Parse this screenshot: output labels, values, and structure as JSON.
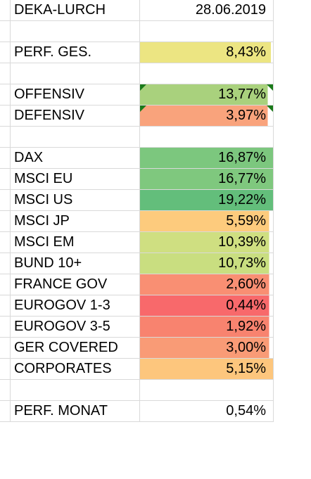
{
  "sheet": {
    "rows": [
      {
        "label": "DEKA-LURCH",
        "value": "28.06.2019",
        "fill": "",
        "bar": 0,
        "tl": false,
        "tr": false
      },
      {
        "label": "",
        "value": "",
        "fill": "",
        "bar": 0,
        "tl": false,
        "tr": false
      },
      {
        "label": "PERF. GES.",
        "value": "8,43%",
        "fill": "#ece582",
        "bar": 0.985,
        "tl": false,
        "tr": false
      },
      {
        "label": "",
        "value": "",
        "fill": "",
        "bar": 0,
        "tl": false,
        "tr": false
      },
      {
        "label": "OFFENSIV",
        "value": "13,77%",
        "fill": "#a9d17d",
        "bar": 0.96,
        "tl": true,
        "tr": true
      },
      {
        "label": "DEFENSIV",
        "value": "3,97%",
        "fill": "#f9a37c",
        "bar": 0.96,
        "tl": true,
        "tr": true
      },
      {
        "label": "",
        "value": "",
        "fill": "",
        "bar": 0,
        "tl": false,
        "tr": false
      },
      {
        "label": "DAX",
        "value": "16,87%",
        "fill": "#7cc77e",
        "bar": 1.0,
        "tl": false,
        "tr": false
      },
      {
        "label": "MSCI EU",
        "value": "16,77%",
        "fill": "#7fc87e",
        "bar": 1.0,
        "tl": false,
        "tr": false
      },
      {
        "label": "MSCI US",
        "value": "19,22%",
        "fill": "#63be7b",
        "bar": 1.0,
        "tl": false,
        "tr": false
      },
      {
        "label": "MSCI JP",
        "value": "5,59%",
        "fill": "#fdcb7d",
        "bar": 0.97,
        "tl": false,
        "tr": false
      },
      {
        "label": "MSCI EM",
        "value": "10,39%",
        "fill": "#cfdf81",
        "bar": 0.97,
        "tl": false,
        "tr": false
      },
      {
        "label": "BUND 10+",
        "value": "10,73%",
        "fill": "#c9de80",
        "bar": 0.97,
        "tl": false,
        "tr": false
      },
      {
        "label": "FRANCE GOV",
        "value": "2,60%",
        "fill": "#f98f73",
        "bar": 0.97,
        "tl": false,
        "tr": false
      },
      {
        "label": "EUROGOV 1-3",
        "value": "0,44%",
        "fill": "#f8696b",
        "bar": 0.97,
        "tl": false,
        "tr": false
      },
      {
        "label": "EUROGOV 3-5",
        "value": "1,92%",
        "fill": "#f8836f",
        "bar": 0.97,
        "tl": false,
        "tr": false
      },
      {
        "label": "GER COVERED",
        "value": "3,00%",
        "fill": "#f99b76",
        "bar": 0.97,
        "tl": false,
        "tr": false
      },
      {
        "label": "CORPORATES",
        "value": "5,15%",
        "fill": "#fdc67d",
        "bar": 1.0,
        "tl": false,
        "tr": false
      },
      {
        "label": "",
        "value": "",
        "fill": "",
        "bar": 0,
        "tl": false,
        "tr": false
      },
      {
        "label": "PERF. MONAT",
        "value": "0,54%",
        "fill": "",
        "bar": 0,
        "tl": false,
        "tr": false
      }
    ]
  }
}
